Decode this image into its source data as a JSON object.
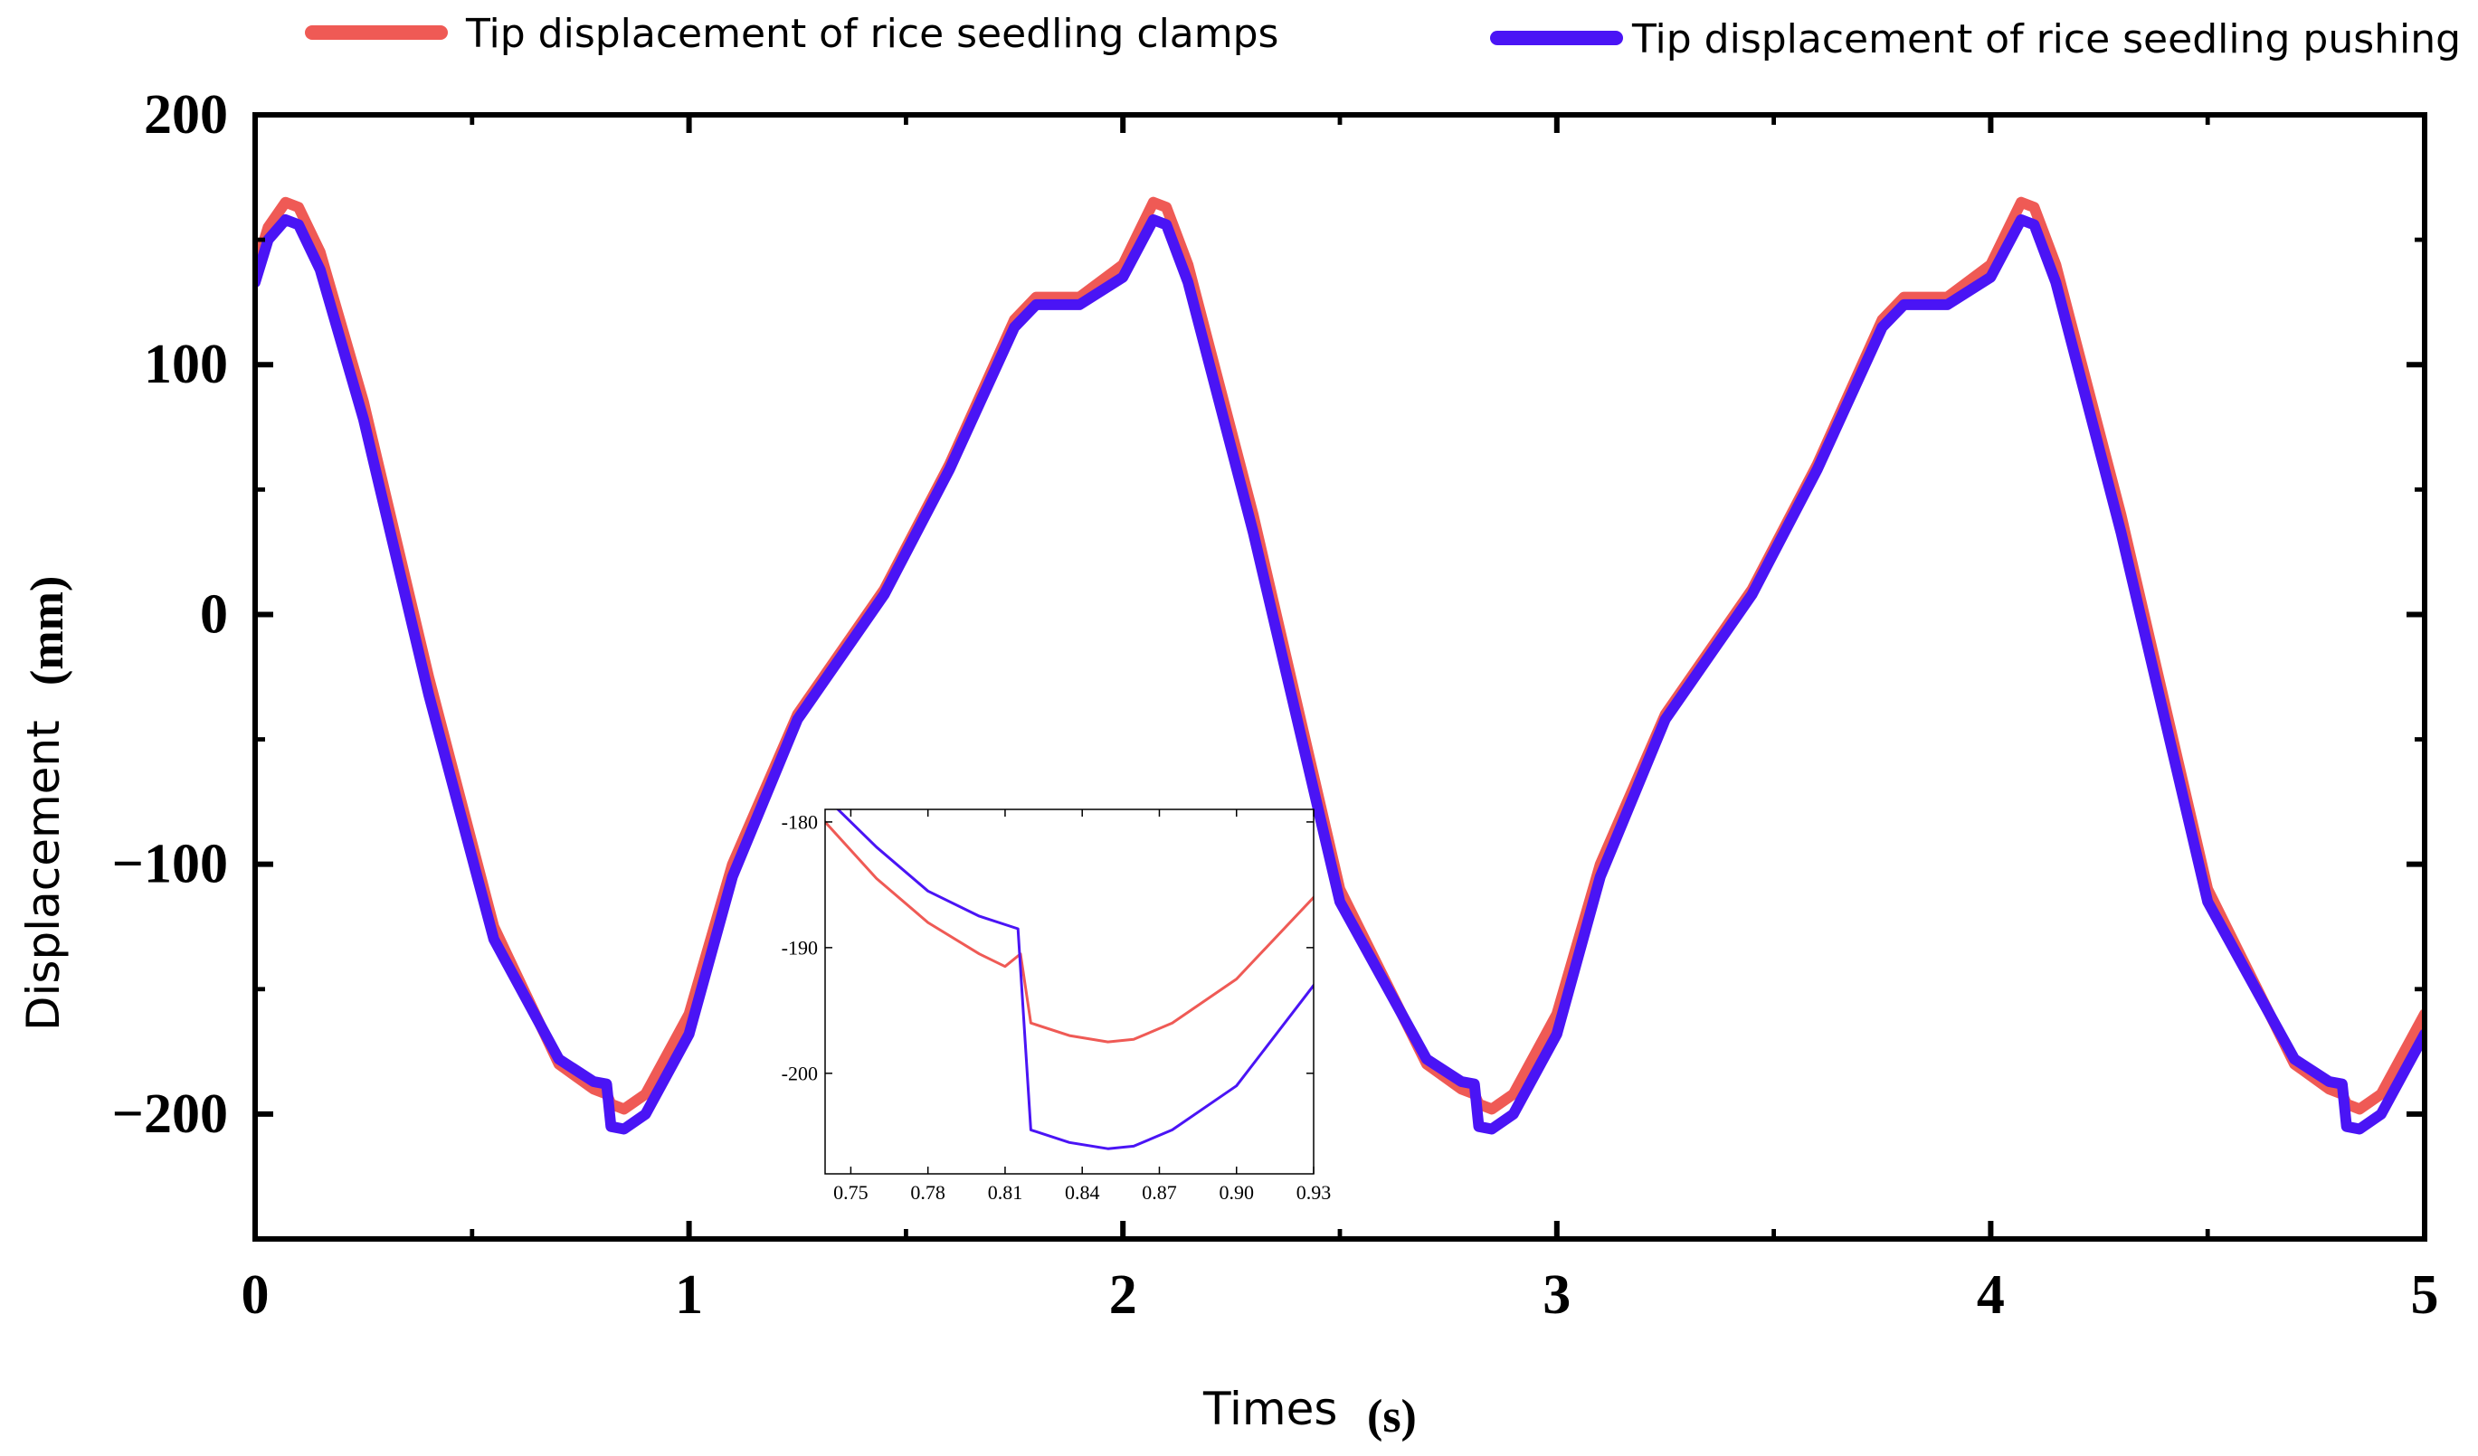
{
  "chart_data": {
    "type": "line",
    "xlabel": "Times",
    "xlabel_unit": "(s)",
    "ylabel": "Displacement",
    "ylabel_unit": "(mm)",
    "xlim": [
      0,
      5
    ],
    "ylim": [
      -250,
      200
    ],
    "x_ticks": [
      "0",
      "1",
      "2",
      "3",
      "4",
      "5"
    ],
    "y_ticks": [
      "200",
      "100",
      "0",
      "−100",
      "−200"
    ],
    "grid": false,
    "legend_position": "top",
    "series": [
      {
        "name": "Tip displacement of rice seedling clamps",
        "color": "#ef5a55",
        "x": [
          0,
          0.03,
          0.07,
          0.1,
          0.15,
          0.25,
          0.4,
          0.55,
          0.7,
          0.78,
          0.81,
          0.82,
          0.85,
          0.9,
          1.0,
          1.1,
          1.25,
          1.45,
          1.6,
          1.75,
          1.8,
          1.9,
          2.0,
          2.07,
          2.1,
          2.15,
          2.3,
          2.5,
          2.7,
          2.78,
          2.81,
          2.82,
          2.85,
          2.9,
          3.0,
          3.1,
          3.25,
          3.45,
          3.6,
          3.75,
          3.8,
          3.9,
          4.0,
          4.07,
          4.1,
          4.15,
          4.3,
          4.5,
          4.7,
          4.78,
          4.81,
          4.82,
          4.85,
          4.9,
          5.0
        ],
        "y": [
          138,
          155,
          165,
          163,
          145,
          85,
          -25,
          -125,
          -180,
          -190,
          -192,
          -196,
          -198,
          -192,
          -160,
          -100,
          -40,
          10,
          60,
          118,
          127,
          127,
          140,
          165,
          163,
          140,
          40,
          -110,
          -180,
          -190,
          -192,
          -196,
          -198,
          -192,
          -160,
          -100,
          -40,
          10,
          60,
          118,
          127,
          127,
          140,
          165,
          163,
          140,
          40,
          -110,
          -180,
          -190,
          -192,
          -196,
          -198,
          -192,
          -160
        ]
      },
      {
        "name": "Tip displacement of rice seedling pushing",
        "color": "#4a14f5",
        "x": [
          0,
          0.03,
          0.07,
          0.1,
          0.15,
          0.25,
          0.4,
          0.55,
          0.7,
          0.78,
          0.81,
          0.82,
          0.85,
          0.9,
          1.0,
          1.1,
          1.25,
          1.45,
          1.6,
          1.75,
          1.8,
          1.9,
          2.0,
          2.07,
          2.1,
          2.15,
          2.3,
          2.5,
          2.7,
          2.78,
          2.81,
          2.82,
          2.85,
          2.9,
          3.0,
          3.1,
          3.25,
          3.45,
          3.6,
          3.75,
          3.8,
          3.9,
          4.0,
          4.07,
          4.1,
          4.15,
          4.3,
          4.5,
          4.7,
          4.78,
          4.81,
          4.82,
          4.85,
          4.9,
          5.0
        ],
        "y": [
          133,
          150,
          158,
          156,
          138,
          78,
          -32,
          -130,
          -178,
          -187,
          -188,
          -205,
          -206,
          -200,
          -168,
          -105,
          -42,
          8,
          58,
          115,
          124,
          124,
          135,
          158,
          156,
          133,
          33,
          -115,
          -178,
          -187,
          -188,
          -205,
          -206,
          -200,
          -168,
          -105,
          -42,
          8,
          58,
          115,
          124,
          124,
          135,
          158,
          156,
          133,
          33,
          -115,
          -178,
          -187,
          -188,
          -205,
          -206,
          -200,
          -168
        ]
      }
    ],
    "inset": {
      "type": "line",
      "xlim": [
        0.74,
        0.93
      ],
      "ylim": [
        -208,
        -179
      ],
      "x_ticks": [
        "0.75",
        "0.78",
        "0.81",
        "0.84",
        "0.87",
        "0.90",
        "0.93"
      ],
      "y_ticks": [
        "-180",
        "-190",
        "-200"
      ],
      "series": [
        {
          "name": "Tip displacement of rice seedling clamps",
          "color": "#ef5a55",
          "x": [
            0.74,
            0.76,
            0.78,
            0.8,
            0.81,
            0.816,
            0.82,
            0.835,
            0.85,
            0.86,
            0.875,
            0.9,
            0.93
          ],
          "y": [
            -180,
            -184.5,
            -188,
            -190.5,
            -191.5,
            -190.5,
            -196,
            -197,
            -197.5,
            -197.3,
            -196,
            -192.5,
            -186
          ]
        },
        {
          "name": "Tip displacement of rice seedling pushing",
          "color": "#4a14f5",
          "x": [
            0.74,
            0.76,
            0.78,
            0.8,
            0.815,
            0.82,
            0.835,
            0.85,
            0.86,
            0.875,
            0.9,
            0.93
          ],
          "y": [
            -178,
            -182,
            -185.5,
            -187.5,
            -188.5,
            -204.5,
            -205.5,
            -206,
            -205.8,
            -204.5,
            -201,
            -193
          ]
        }
      ]
    }
  }
}
